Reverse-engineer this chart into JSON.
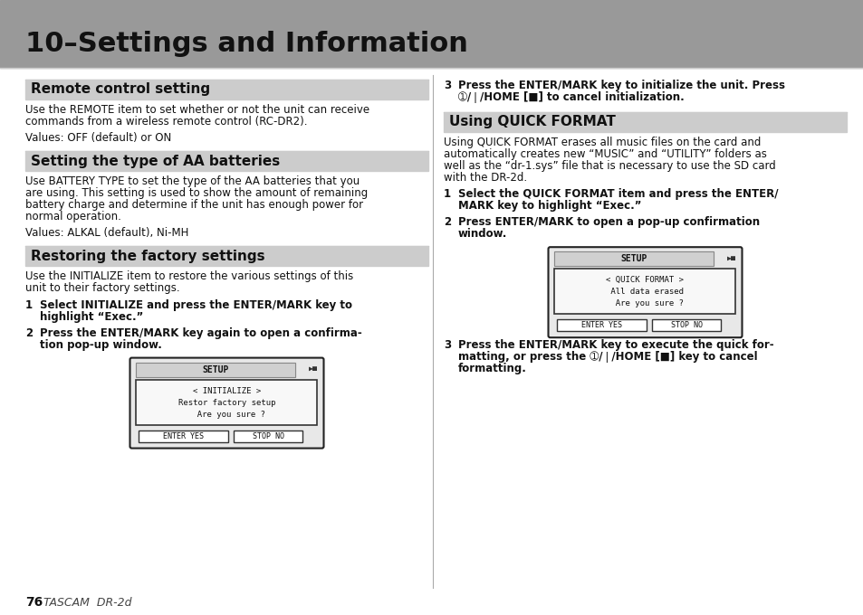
{
  "page_bg": "#ffffff",
  "header_bg": "#999999",
  "header_text": "10–Settings and Information",
  "header_text_color": "#111111",
  "body_text_color": "#000000",
  "left_sections": [
    {
      "heading": "Remote control setting",
      "body_lines": [
        "Use the REMOTE item to set whether or not the unit can receive",
        "commands from a wireless remote control (RC-DR2).",
        "",
        "Values: OFF (default) or ON"
      ]
    },
    {
      "heading": "Setting the type of AA batteries",
      "body_lines": [
        "Use BATTERY TYPE to set the type of the AA batteries that you",
        "are using. This setting is used to show the amount of remaining",
        "battery charge and determine if the unit has enough power for",
        "normal operation.",
        "",
        "Values: ALKAL (default), Ni-MH"
      ]
    },
    {
      "heading": "Restoring the factory settings",
      "body_lines": [
        "Use the INITIALIZE item to restore the various settings of this",
        "unit to their factory settings.",
        "",
        "STEP1: Select INITIALIZE and press the ENTER/MARK key to",
        "highlight “Exec.”",
        "",
        "STEP2: Press the ENTER/MARK key again to open a confirma-",
        "tion pop-up window."
      ]
    }
  ],
  "right_sections": [
    {
      "heading": null,
      "body_lines": [
        "STEP3: Press the ENTER/MARK key to initialize the unit. Press",
        "➀/❘/HOME [■] to cancel initialization."
      ]
    },
    {
      "heading": "Using QUICK FORMAT",
      "body_lines": [
        "Using QUICK FORMAT erases all music files on the card and",
        "automatically creates new “MUSIC” and “UTILITY” folders as",
        "well as the “dr-1.sys” file that is necessary to use the SD card",
        "with the DR-2d.",
        "",
        "STEP1: Select the QUICK FORMAT item and press the ENTER/",
        "MARK key to highlight “Exec.”",
        "",
        "STEP2: Press ENTER/MARK to open a pop-up confirmation",
        "window."
      ]
    },
    {
      "heading": null,
      "body_lines": [
        "STEP3: Press the ENTER/MARK key to execute the quick for-",
        "matting, or press the ➀/❘/HOME [■] key to cancel",
        "formatting."
      ]
    }
  ],
  "footer": "76  TASCAM  DR-2d"
}
